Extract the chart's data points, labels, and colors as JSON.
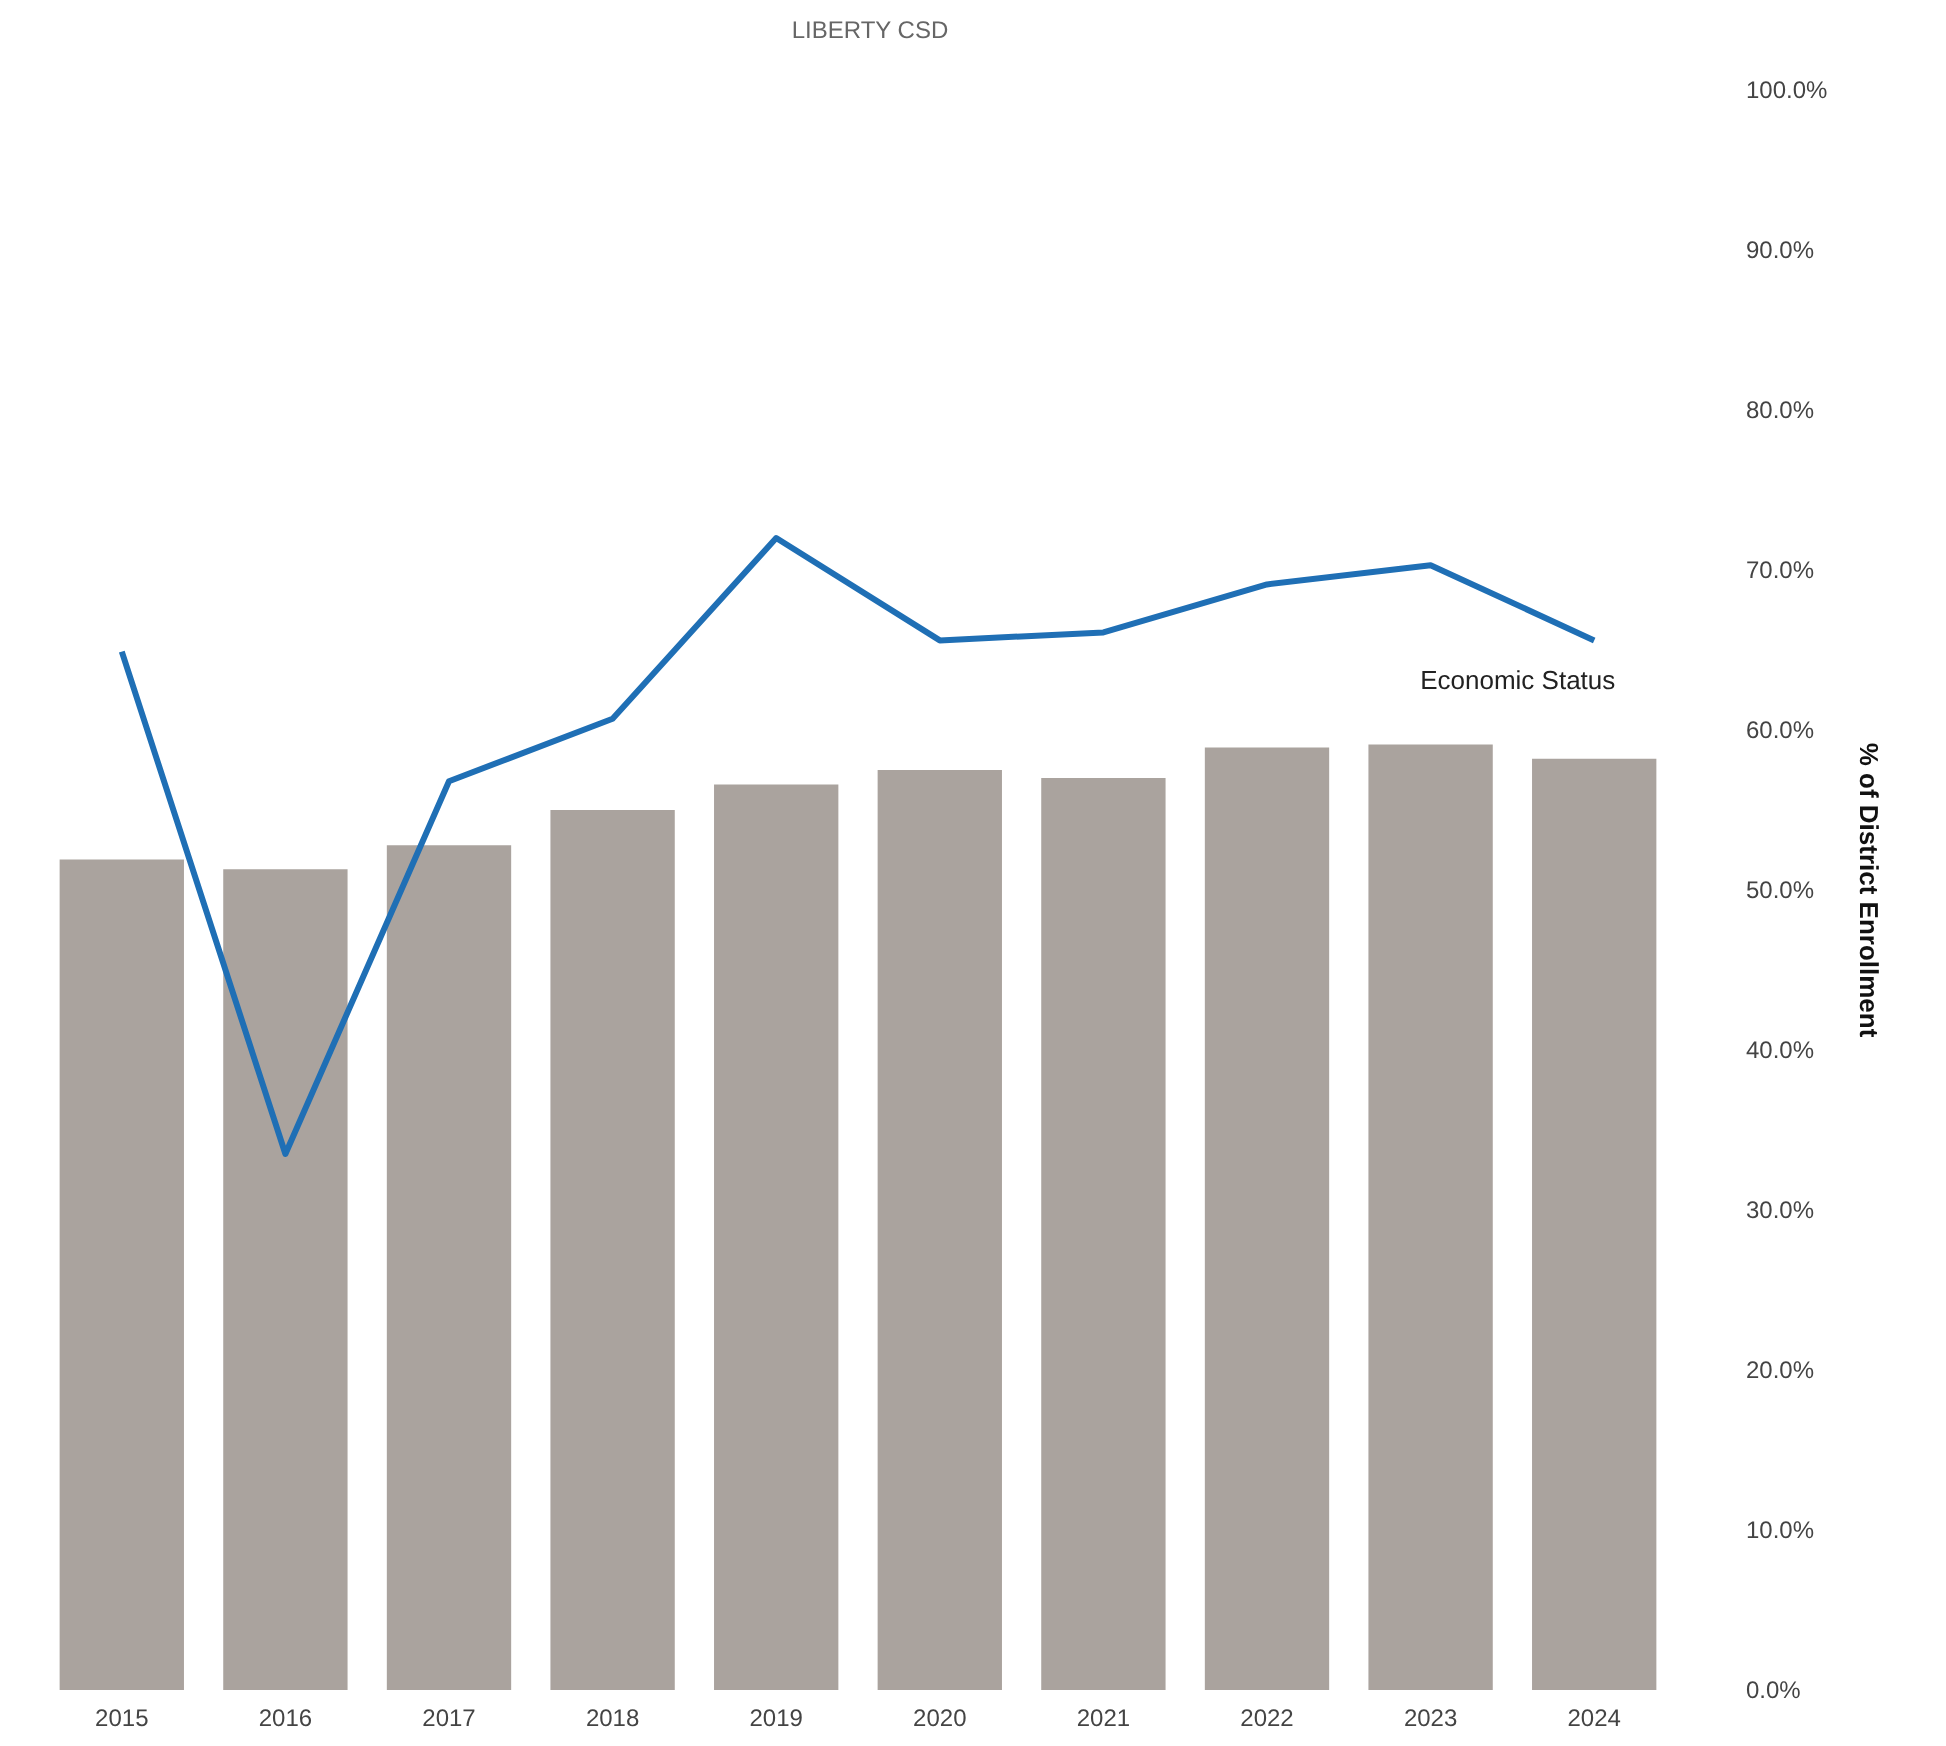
{
  "chart_data": {
    "type": "bar",
    "title": "LIBERTY CSD",
    "ylabel": "% of District Enrollment",
    "categories": [
      "2015",
      "2016",
      "2017",
      "2018",
      "2019",
      "2020",
      "2021",
      "2022",
      "2023",
      "2024"
    ],
    "series": [
      {
        "color": "#aaa39e",
        "values": [
          51.9,
          51.3,
          52.8,
          55.0,
          56.6,
          57.5,
          57.0,
          58.9,
          59.1,
          58.2
        ]
      },
      {
        "type": "line",
        "name": "Economic Status",
        "color": "#1f6fb5",
        "values": [
          64.9,
          33.5,
          56.8,
          60.7,
          72.0,
          65.6,
          66.1,
          69.1,
          70.3,
          65.6
        ]
      }
    ],
    "ylim": [
      0,
      100
    ],
    "yticks": [
      {
        "value": 0,
        "label": "0.0%"
      },
      {
        "value": 10,
        "label": "10.0%"
      },
      {
        "value": 20,
        "label": "20.0%"
      },
      {
        "value": 30,
        "label": "30.0%"
      },
      {
        "value": 40,
        "label": "40.0%"
      },
      {
        "value": 50,
        "label": "50.0%"
      },
      {
        "value": 60,
        "label": "60.0%"
      },
      {
        "value": 70,
        "label": "70.0%"
      },
      {
        "value": 80,
        "label": "80.0%"
      },
      {
        "value": 90,
        "label": "90.0%"
      },
      {
        "value": 100,
        "label": "100.0%"
      }
    ],
    "grid": false,
    "marker": "none"
  }
}
